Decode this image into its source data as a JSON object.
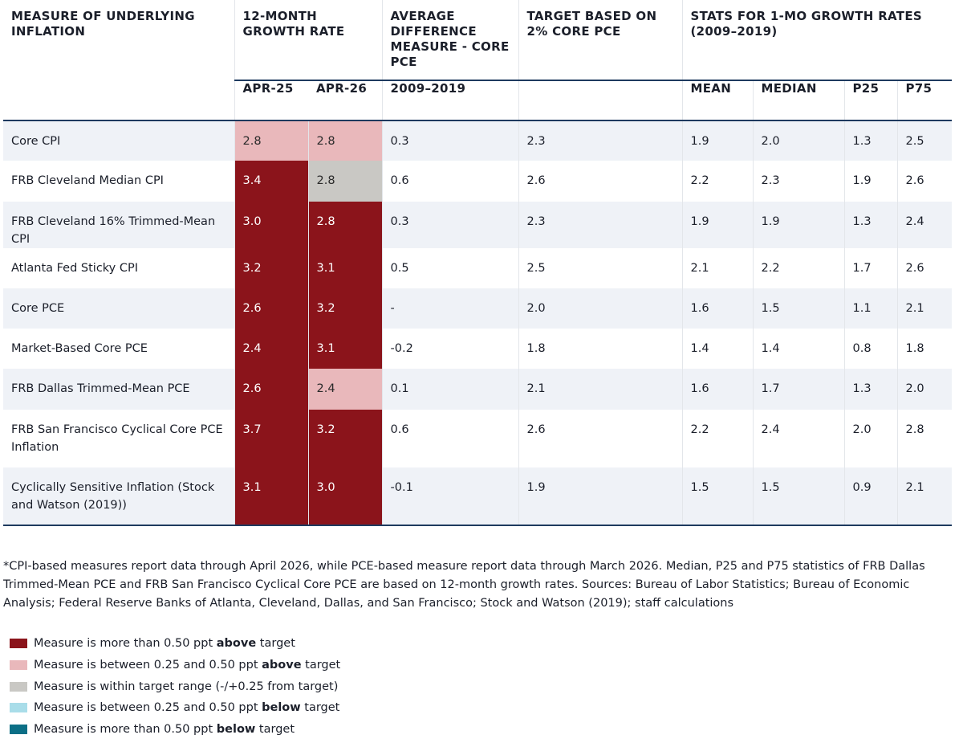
{
  "headers": {
    "measure": "MEASURE OF UNDERLYING INFLATION",
    "growth": "12-MONTH GROWTH RATE",
    "avgdiff": "AVERAGE DIFFERENCE MEASURE - CORE PCE",
    "target": "TARGET BASED ON 2% CORE PCE",
    "stats": "STATS FOR 1-MO GROWTH RATES (2009–2019)",
    "apr25": "APR-25",
    "apr26": "APR-26",
    "period": "2009–2019",
    "mean": "MEAN",
    "median": "MEDIAN",
    "p25": "P25",
    "p75": "P75"
  },
  "rows": [
    {
      "measure": "Core CPI",
      "apr25": "2.8",
      "apr26": "2.8",
      "c25": "above-low",
      "c26": "above-low",
      "avgdiff": "0.3",
      "target": "2.3",
      "mean": "1.9",
      "median": "2.0",
      "p25": "1.3",
      "p75": "2.5"
    },
    {
      "measure": "FRB Cleveland Median CPI",
      "apr25": "3.4",
      "apr26": "2.8",
      "c25": "above-high",
      "c26": "within",
      "avgdiff": "0.6",
      "target": "2.6",
      "mean": "2.2",
      "median": "2.3",
      "p25": "1.9",
      "p75": "2.6"
    },
    {
      "measure": "FRB Cleveland 16% Trimmed-Mean CPI",
      "apr25": "3.0",
      "apr26": "2.8",
      "c25": "above-high",
      "c26": "above-high",
      "avgdiff": "0.3",
      "target": "2.3",
      "mean": "1.9",
      "median": "1.9",
      "p25": "1.3",
      "p75": "2.4"
    },
    {
      "measure": "Atlanta Fed Sticky CPI",
      "apr25": "3.2",
      "apr26": "3.1",
      "c25": "above-high",
      "c26": "above-high",
      "avgdiff": "0.5",
      "target": "2.5",
      "mean": "2.1",
      "median": "2.2",
      "p25": "1.7",
      "p75": "2.6"
    },
    {
      "measure": "Core PCE",
      "apr25": "2.6",
      "apr26": "3.2",
      "c25": "above-high",
      "c26": "above-high",
      "avgdiff": "-",
      "target": "2.0",
      "mean": "1.6",
      "median": "1.5",
      "p25": "1.1",
      "p75": "2.1"
    },
    {
      "measure": "Market-Based Core PCE",
      "apr25": "2.4",
      "apr26": "3.1",
      "c25": "above-high",
      "c26": "above-high",
      "avgdiff": "-0.2",
      "target": "1.8",
      "mean": "1.4",
      "median": "1.4",
      "p25": "0.8",
      "p75": "1.8"
    },
    {
      "measure": "FRB Dallas Trimmed-Mean PCE",
      "apr25": "2.6",
      "apr26": "2.4",
      "c25": "above-high",
      "c26": "above-low",
      "avgdiff": "0.1",
      "target": "2.1",
      "mean": "1.6",
      "median": "1.7",
      "p25": "1.3",
      "p75": "2.0"
    },
    {
      "measure": "FRB San Francisco Cyclical Core PCE Inflation",
      "apr25": "3.7",
      "apr26": "3.2",
      "c25": "above-high",
      "c26": "above-high",
      "avgdiff": "0.6",
      "target": "2.6",
      "mean": "2.2",
      "median": "2.4",
      "p25": "2.0",
      "p75": "2.8"
    },
    {
      "measure": "Cyclically Sensitive Inflation (Stock and Watson (2019))",
      "apr25": "3.1",
      "apr26": "3.0",
      "c25": "above-high",
      "c26": "above-high",
      "avgdiff": "-0.1",
      "target": "1.9",
      "mean": "1.5",
      "median": "1.5",
      "p25": "0.9",
      "p75": "2.1"
    }
  ],
  "footnote": "*CPI-based measures report data through April 2026, while PCE-based measure report data through March 2026. Median, P25 and P75 statistics of FRB Dallas Trimmed-Mean PCE and FRB San Francisco Cyclical Core PCE are based on 12-month growth rates. Sources: Bureau of Labor Statistics; Bureau of Economic Analysis; Federal Reserve Banks of Atlanta, Cleveland, Dallas, and San Francisco; Stock and Watson (2019); staff calculations",
  "legend": [
    {
      "pre": "Measure is more than 0.50 ppt ",
      "bold": "above",
      "post": " target",
      "color": "#8b141b"
    },
    {
      "pre": "Measure is between 0.25 and 0.50 ppt ",
      "bold": "above",
      "post": " target",
      "color": "#e9b8bb"
    },
    {
      "pre": "Measure is within target range (-/+0.25 from target)",
      "bold": "",
      "post": "",
      "color": "#c9c8c4"
    },
    {
      "pre": "Measure is between 0.25 and 0.50 ppt ",
      "bold": "below",
      "post": " target",
      "color": "#a9dde9"
    },
    {
      "pre": "Measure is more than 0.50 ppt ",
      "bold": "below",
      "post": " target",
      "color": "#0c6f86"
    }
  ]
}
